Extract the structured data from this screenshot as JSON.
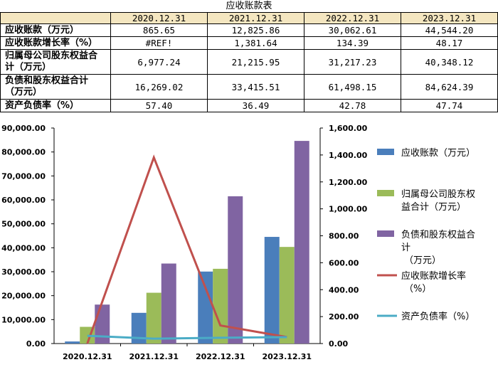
{
  "table": {
    "title": "应收账款表",
    "columns": [
      "2020.12.31",
      "2021.12.31",
      "2022.12.31",
      "2023.12.31"
    ],
    "rows": [
      {
        "label": "应收账款（万元）",
        "values": [
          "865.65",
          "12,825.86",
          "30,062.61",
          "44,544.20"
        ]
      },
      {
        "label": "应收账款增长率（%）",
        "values": [
          "#REF!",
          "1,381.64",
          "134.39",
          "48.17"
        ]
      },
      {
        "label": "归属母公司股东权益合计（万元）",
        "values": [
          "6,977.24",
          "21,215.95",
          "31,217.23",
          "40,348.12"
        ]
      },
      {
        "label": "负债和股东权益合计（万元）",
        "values": [
          "16,269.02",
          "33,415.51",
          "61,498.15",
          "84,624.39"
        ]
      },
      {
        "label": "资产负债率（%）",
        "values": [
          "57.40",
          "36.49",
          "42.78",
          "47.74"
        ]
      }
    ]
  },
  "chart_data": {
    "type": "bar",
    "categories": [
      "2020.12.31",
      "2021.12.31",
      "2022.12.31",
      "2023.12.31"
    ],
    "y_left": {
      "min": 0,
      "max": 90000,
      "step": 10000,
      "tick_labels": [
        "0.00",
        "10,000.00",
        "20,000.00",
        "30,000.00",
        "40,000.00",
        "50,000.00",
        "60,000.00",
        "70,000.00",
        "80,000.00",
        "90,000.00"
      ]
    },
    "y_right": {
      "min": 0,
      "max": 1600,
      "step": 200,
      "tick_labels": [
        "0.00",
        "200.00",
        "400.00",
        "600.00",
        "800.00",
        "1,000.00",
        "1,200.00",
        "1,400.00",
        "1,600.00"
      ]
    },
    "grid": false,
    "legend_position": "right",
    "series": [
      {
        "name": "应收账款（万元）",
        "kind": "bar",
        "axis": "left",
        "color": "#4a7ebb",
        "values": [
          865.65,
          12825.86,
          30062.61,
          44544.2
        ]
      },
      {
        "name": "归属母公司股东权益合计（万元）",
        "kind": "bar",
        "axis": "left",
        "color": "#9bbb59",
        "values": [
          6977.24,
          21215.95,
          31217.23,
          40348.12
        ]
      },
      {
        "name": "负债和股东权益合计（万元）",
        "kind": "bar",
        "axis": "left",
        "color": "#8064a2",
        "values": [
          16269.02,
          33415.51,
          61498.15,
          84624.39
        ]
      },
      {
        "name": "应收账款增长率（%）",
        "kind": "line",
        "axis": "right",
        "color": "#c0504d",
        "values": [
          0,
          1381.64,
          134.39,
          48.17
        ]
      },
      {
        "name": "资产负债率（%）",
        "kind": "line",
        "axis": "right",
        "color": "#4bacc6",
        "values": [
          57.4,
          36.49,
          42.78,
          47.74
        ]
      }
    ]
  }
}
